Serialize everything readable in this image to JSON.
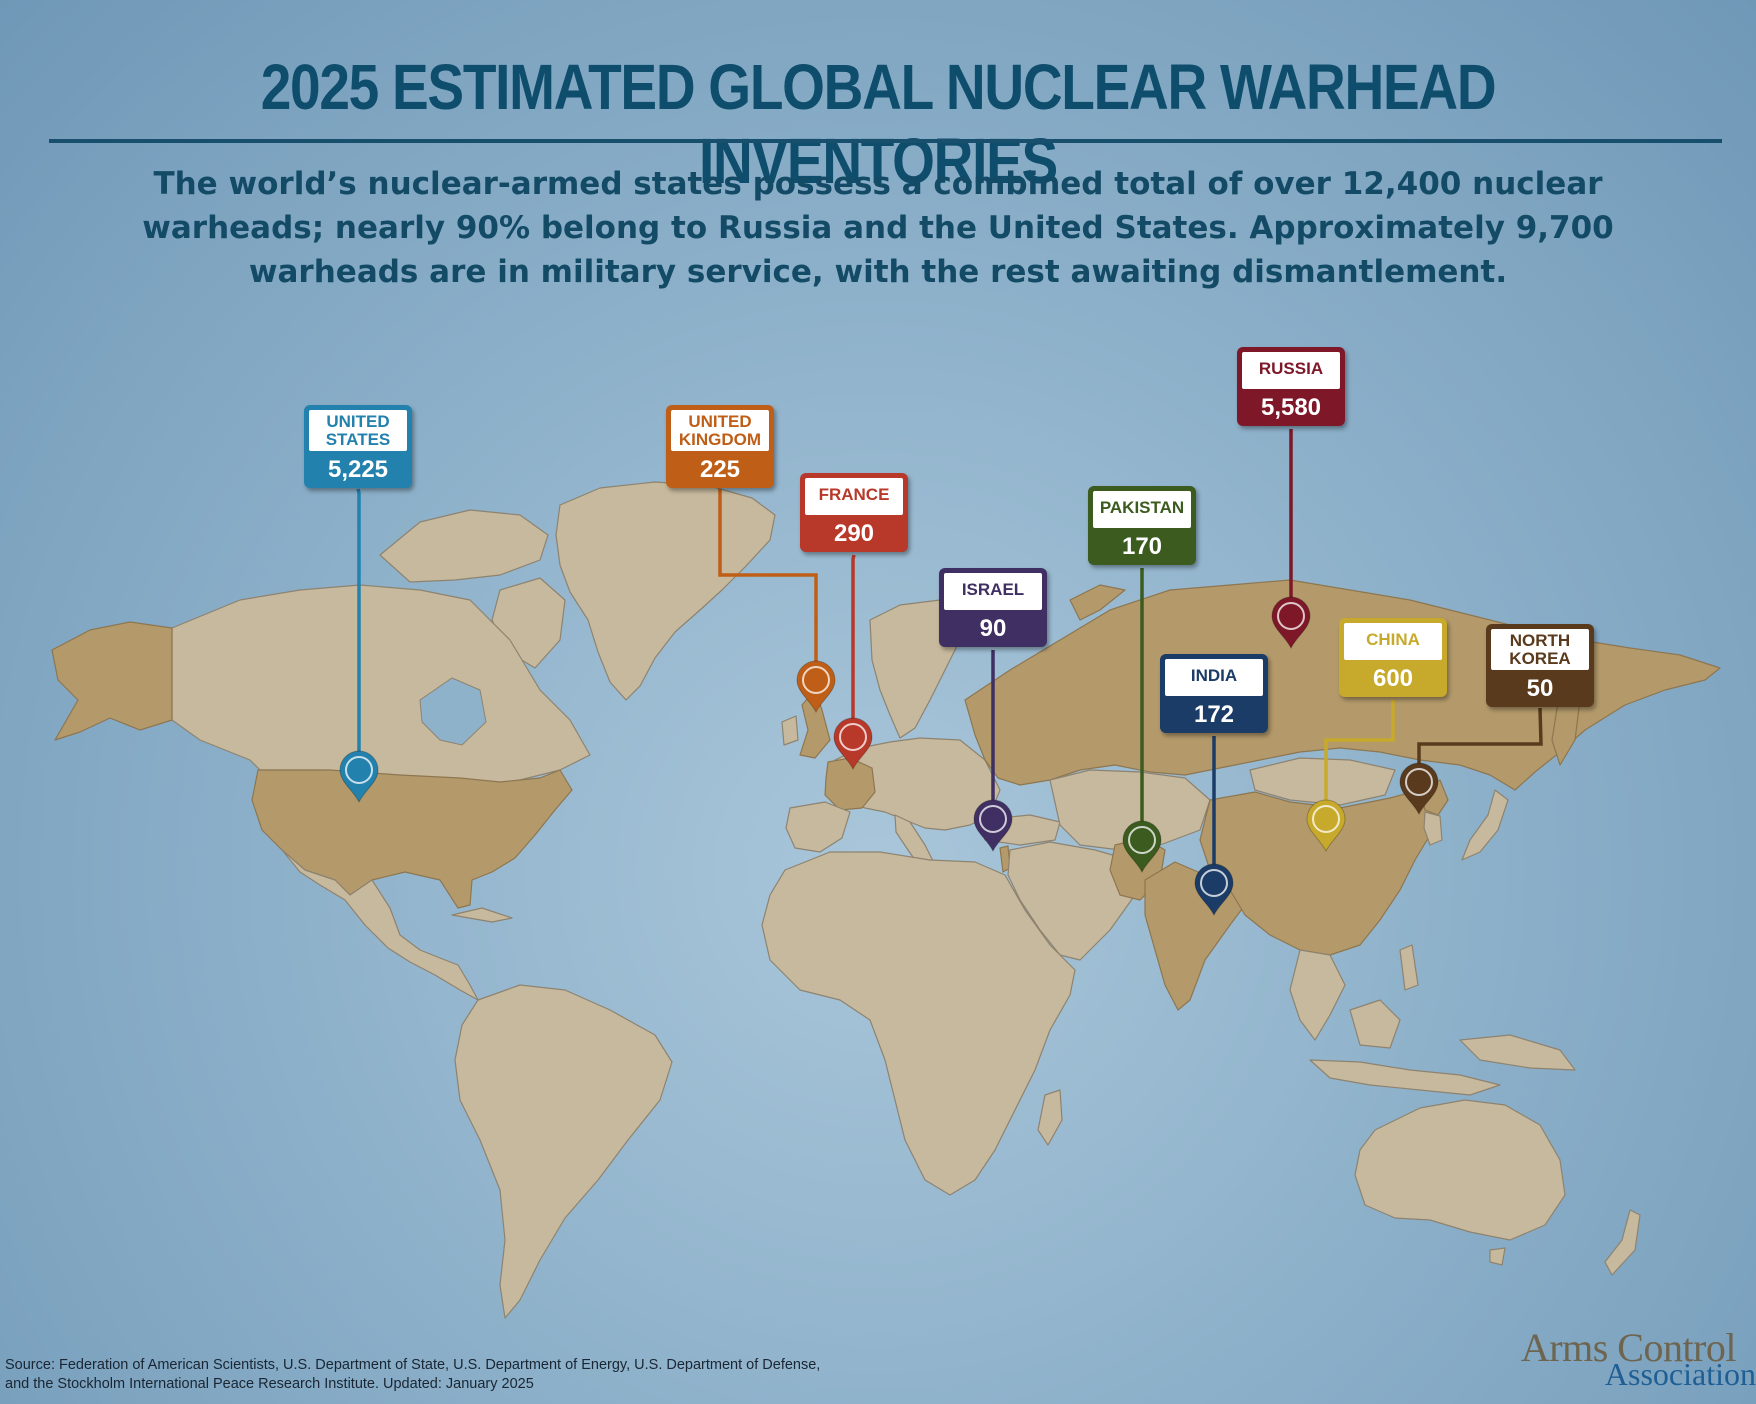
{
  "title": "2025 ESTIMATED GLOBAL NUCLEAR WARHEAD INVENTORIES",
  "subtitle": "The world’s nuclear-armed states possess a combined total of over 12,400 nuclear warheads; nearly 90% belong to Russia and the United States. Approximately 9,700 warheads are in military service, with the rest awaiting dismantlement.",
  "countries": [
    {
      "key": "us",
      "name": "UNITED STATES",
      "value": "5,225",
      "color": "#2281ad"
    },
    {
      "key": "uk",
      "name": "UNITED KINGDOM",
      "value": "225",
      "color": "#bf5e16"
    },
    {
      "key": "france",
      "name": "FRANCE",
      "value": "290",
      "color": "#b8382a"
    },
    {
      "key": "israel",
      "name": "ISRAEL",
      "value": "90",
      "color": "#3f2f63"
    },
    {
      "key": "pakistan",
      "name": "PAKISTAN",
      "value": "170",
      "color": "#3b5b1f"
    },
    {
      "key": "russia",
      "name": "RUSSIA",
      "value": "5,580",
      "color": "#7e1829"
    },
    {
      "key": "india",
      "name": "INDIA",
      "value": "172",
      "color": "#1b3c66"
    },
    {
      "key": "china",
      "name": "CHINA",
      "value": "600",
      "color": "#c7aa2c"
    },
    {
      "key": "nkorea",
      "name": "NORTH KOREA",
      "value": "50",
      "color": "#5a3a1c"
    }
  ],
  "source": {
    "line1": "Source: Federation of American Scientists, U.S. Department of State, U.S. Department of Energy, U.S. Department of Defense,",
    "line2": "and the Stockholm International Peace Research Institute. Updated: January 2025"
  },
  "logo": {
    "line1": "Arms Control",
    "line2": "Association"
  },
  "colors": {
    "land": "#c7b99d",
    "nuclear_state": "#b49a6b",
    "ocean": "#8fb2cb",
    "title": "#0f4d6c"
  },
  "icons": [
    "map-pin-icon"
  ]
}
